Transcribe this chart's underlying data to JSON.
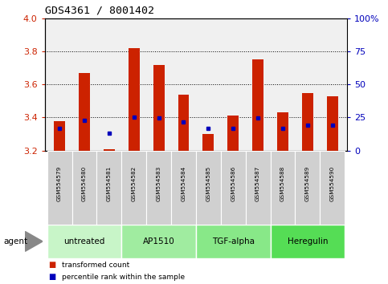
{
  "title": "GDS4361 / 8001402",
  "samples": [
    "GSM554579",
    "GSM554580",
    "GSM554581",
    "GSM554582",
    "GSM554583",
    "GSM554584",
    "GSM554585",
    "GSM554586",
    "GSM554587",
    "GSM554588",
    "GSM554589",
    "GSM554590"
  ],
  "red_values": [
    3.38,
    3.67,
    3.21,
    3.82,
    3.72,
    3.54,
    3.3,
    3.41,
    3.75,
    3.43,
    3.55,
    3.53
  ],
  "blue_values": [
    3.335,
    3.385,
    3.305,
    3.4,
    3.395,
    3.375,
    3.335,
    3.335,
    3.395,
    3.335,
    3.355,
    3.355
  ],
  "ymin": 3.2,
  "ymax": 4.0,
  "yticks_left": [
    3.2,
    3.4,
    3.6,
    3.8,
    4.0
  ],
  "yticks_right": [
    0,
    25,
    50,
    75,
    100
  ],
  "agent_groups": [
    {
      "label": "untreated",
      "start": 0,
      "end": 3,
      "color": "#C8F5C8"
    },
    {
      "label": "AP1510",
      "start": 3,
      "end": 6,
      "color": "#A0ECA0"
    },
    {
      "label": "TGF-alpha",
      "start": 6,
      "end": 9,
      "color": "#88E888"
    },
    {
      "label": "Heregulin",
      "start": 9,
      "end": 12,
      "color": "#55DD55"
    }
  ],
  "bar_color": "#CC2200",
  "blue_color": "#0000BB",
  "sample_bg": "#D0D0D0",
  "agent_label": "agent",
  "legend_red": "transformed count",
  "legend_blue": "percentile rank within the sample",
  "bar_width": 0.45,
  "plot_bg": "#F0F0F0",
  "label_color_left": "#CC2200",
  "label_color_right": "#0000BB",
  "grid_yticks": [
    3.4,
    3.6,
    3.8
  ]
}
